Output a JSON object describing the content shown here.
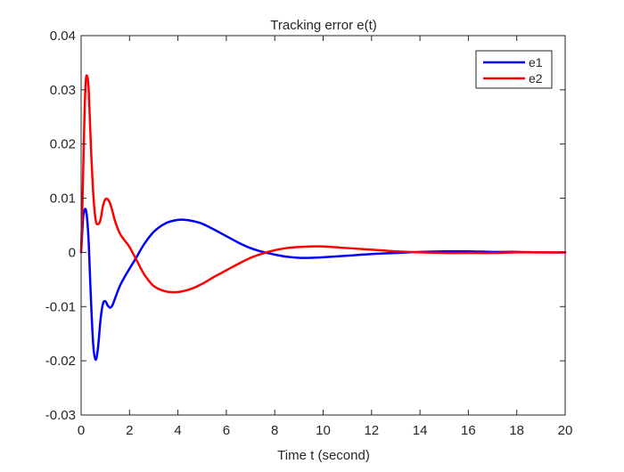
{
  "chart_data": {
    "type": "line",
    "title": "Tracking error e(t)",
    "xlabel": "Time t (second)",
    "ylabel": "",
    "xlim": [
      0,
      20
    ],
    "ylim": [
      -0.03,
      0.04
    ],
    "xticks": [
      0,
      2,
      4,
      6,
      8,
      10,
      12,
      14,
      16,
      18,
      20
    ],
    "yticks": [
      -0.03,
      -0.02,
      -0.01,
      0,
      0.01,
      0.02,
      0.03,
      0.04
    ],
    "xtick_labels": [
      "0",
      "2",
      "4",
      "6",
      "8",
      "10",
      "12",
      "14",
      "16",
      "18",
      "20"
    ],
    "ytick_labels": [
      "-0.03",
      "-0.02",
      "-0.01",
      "0",
      "0.01",
      "0.02",
      "0.03",
      "0.04"
    ],
    "grid": false,
    "legend_position": "top-right",
    "series": [
      {
        "name": "e1",
        "color": "#0000ff",
        "x": [
          0,
          0.05,
          0.1,
          0.2,
          0.3,
          0.4,
          0.5,
          0.6,
          0.7,
          0.8,
          0.9,
          1.0,
          1.1,
          1.2,
          1.3,
          1.4,
          1.6,
          1.8,
          2.0,
          2.3,
          2.6,
          3.0,
          3.5,
          4.0,
          4.3,
          4.6,
          5.0,
          5.5,
          6.0,
          6.5,
          7.0,
          7.5,
          8.0,
          8.5,
          9.0,
          9.5,
          10.0,
          11.0,
          12.0,
          13.0,
          14.0,
          15.0,
          16.0,
          17.0,
          18.0,
          19.0,
          20.0
        ],
        "y": [
          0,
          0.004,
          0.007,
          0.0078,
          0.003,
          -0.008,
          -0.017,
          -0.0198,
          -0.0175,
          -0.0125,
          -0.0095,
          -0.009,
          -0.0098,
          -0.0102,
          -0.0097,
          -0.0085,
          -0.0062,
          -0.0045,
          -0.003,
          -0.0008,
          0.0015,
          0.0038,
          0.0054,
          0.006,
          0.006,
          0.0058,
          0.0053,
          0.0042,
          0.003,
          0.0018,
          0.0008,
          0.0001,
          -0.0004,
          -0.0008,
          -0.001,
          -0.001,
          -0.0009,
          -0.0006,
          -0.0003,
          -0.0001,
          0.0001,
          0.0002,
          0.0002,
          0.0001,
          0.0001,
          0,
          0
        ]
      },
      {
        "name": "e2",
        "color": "#ff0000",
        "x": [
          0,
          0.05,
          0.1,
          0.15,
          0.2,
          0.25,
          0.3,
          0.35,
          0.4,
          0.5,
          0.6,
          0.7,
          0.8,
          0.9,
          1.0,
          1.1,
          1.2,
          1.3,
          1.4,
          1.6,
          1.8,
          2.0,
          2.3,
          2.6,
          3.0,
          3.5,
          4.0,
          4.5,
          5.0,
          5.5,
          6.0,
          6.5,
          7.0,
          7.5,
          8.0,
          8.5,
          9.0,
          9.5,
          10.0,
          11.0,
          12.0,
          13.0,
          14.0,
          15.0,
          16.0,
          17.0,
          18.0,
          19.0,
          20.0
        ],
        "y": [
          0,
          0.008,
          0.018,
          0.027,
          0.032,
          0.0325,
          0.031,
          0.026,
          0.02,
          0.011,
          0.006,
          0.0052,
          0.006,
          0.0085,
          0.0098,
          0.0098,
          0.009,
          0.0075,
          0.0058,
          0.0035,
          0.0022,
          0.001,
          -0.0015,
          -0.004,
          -0.0062,
          -0.0072,
          -0.0073,
          -0.0068,
          -0.0058,
          -0.0045,
          -0.0033,
          -0.0021,
          -0.001,
          -0.0002,
          0.0004,
          0.0008,
          0.001,
          0.0011,
          0.0011,
          0.0008,
          0.0005,
          0.0002,
          0,
          -0.0001,
          -0.0001,
          -0.0001,
          0,
          0,
          0
        ]
      }
    ]
  }
}
